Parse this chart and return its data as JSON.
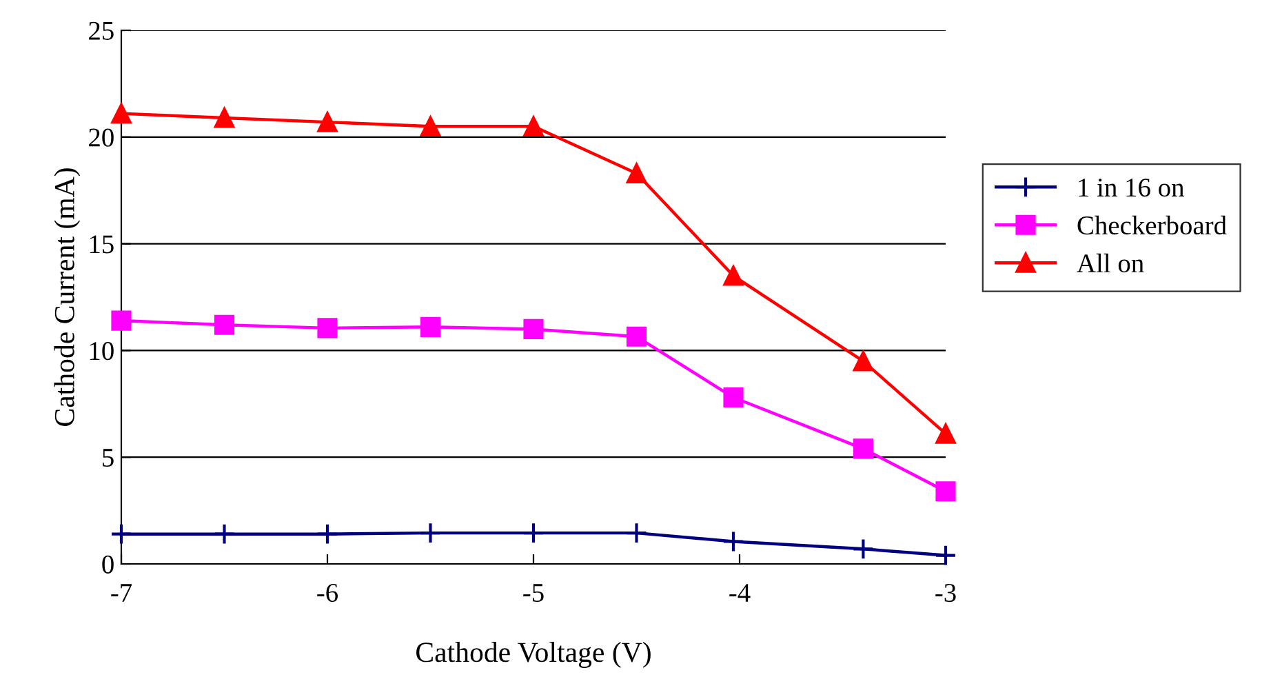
{
  "chart_data": {
    "type": "line",
    "xlabel": "Cathode Voltage (V)",
    "ylabel": "Cathode Current (mA)",
    "x": [
      -7,
      -6.5,
      -6,
      -5.5,
      -5,
      -4.5,
      -4.03,
      -3.4,
      -3
    ],
    "series": [
      {
        "name": "1 in 16 on",
        "color": "#000080",
        "marker": "cross",
        "values": [
          1.4,
          1.4,
          1.4,
          1.45,
          1.45,
          1.45,
          1.05,
          0.7,
          0.4
        ]
      },
      {
        "name": "Checkerboard",
        "color": "#ff00ff",
        "marker": "square",
        "values": [
          11.4,
          11.2,
          11.05,
          11.1,
          11.0,
          10.65,
          7.8,
          5.4,
          3.4
        ]
      },
      {
        "name": "All on",
        "color": "#ff0000",
        "marker": "triangle",
        "values": [
          21.1,
          20.9,
          20.7,
          20.5,
          20.5,
          18.3,
          13.5,
          9.5,
          6.1
        ]
      }
    ],
    "xlim": [
      -7,
      -3
    ],
    "xticks": [
      -7,
      -6,
      -5,
      -4,
      -3
    ],
    "ylim": [
      0,
      25
    ],
    "yticks": [
      0,
      5,
      10,
      15,
      20,
      25
    ],
    "grid": "y",
    "legend": "right",
    "line_style": "solid"
  }
}
